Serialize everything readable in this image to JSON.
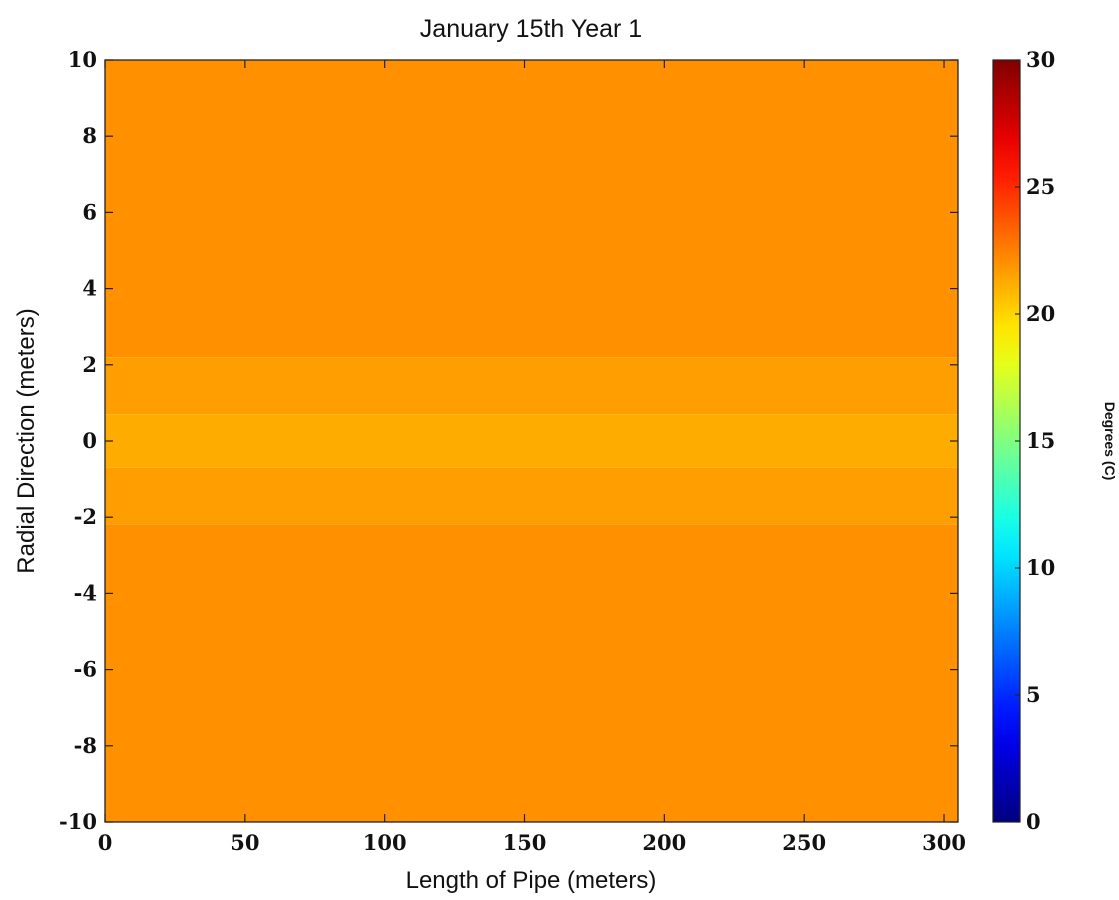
{
  "chart_data": {
    "type": "heatmap",
    "title": "January 15th Year 1",
    "xlabel": "Length of Pipe (meters)",
    "ylabel": "Radial Direction (meters)",
    "xlim": [
      0,
      305
    ],
    "ylim": [
      -10,
      10
    ],
    "x_ticks": [
      "0",
      "50",
      "100",
      "150",
      "200",
      "250",
      "300"
    ],
    "y_ticks": [
      "-10",
      "-8",
      "-6",
      "-4",
      "-2",
      "0",
      "2",
      "4",
      "6",
      "8",
      "10"
    ],
    "colorbar": {
      "label": "Degrees (C)",
      "range": [
        0,
        30
      ],
      "ticks": [
        "0",
        "5",
        "10",
        "15",
        "20",
        "25",
        "30"
      ],
      "colormap": "jet"
    },
    "grid": false,
    "bands": [
      {
        "y_from": 2.2,
        "y_to": 10,
        "value": 22.0
      },
      {
        "y_from": 0.7,
        "y_to": 2.2,
        "value": 21.6
      },
      {
        "y_from": -0.7,
        "y_to": 0.7,
        "value": 21.2
      },
      {
        "y_from": -2.2,
        "y_to": -0.7,
        "value": 21.6
      },
      {
        "y_from": -10,
        "y_to": -2.2,
        "value": 22.0
      }
    ]
  }
}
